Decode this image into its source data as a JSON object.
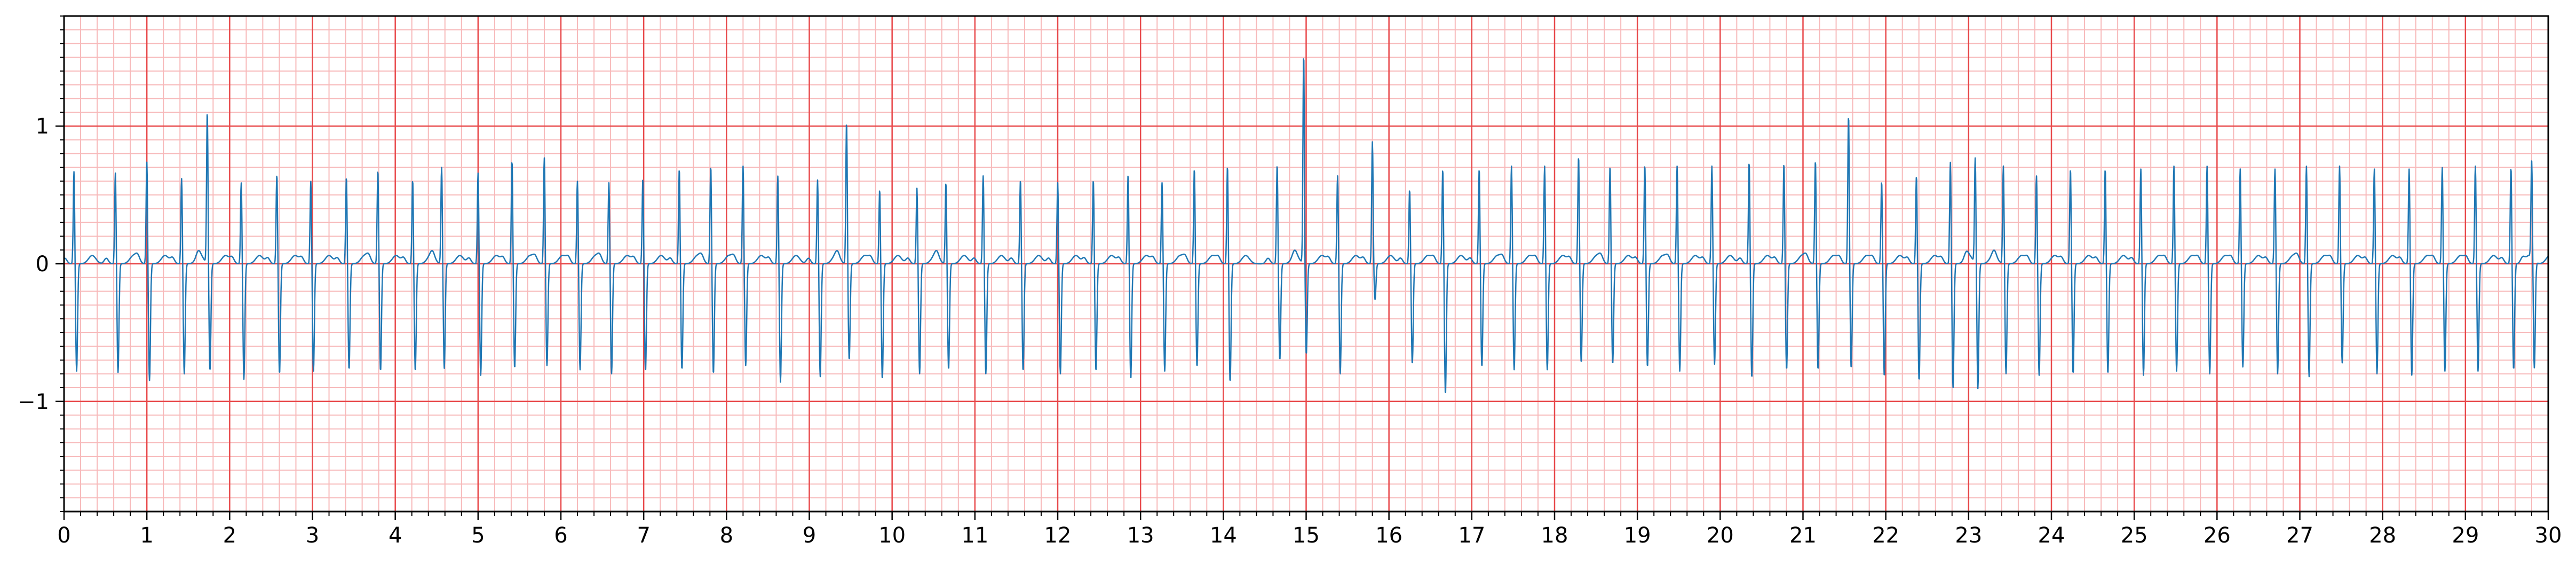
{
  "chart_data": {
    "type": "line",
    "title": "",
    "xlabel": "",
    "ylabel": "",
    "xlim": [
      0,
      30
    ],
    "ylim": [
      -1.8,
      1.8
    ],
    "x_ticks": [
      0,
      1,
      2,
      3,
      4,
      5,
      6,
      7,
      8,
      9,
      10,
      11,
      12,
      13,
      14,
      15,
      16,
      17,
      18,
      19,
      20,
      21,
      22,
      23,
      24,
      25,
      26,
      27,
      28,
      29,
      30
    ],
    "x_tick_labels": [
      "0",
      "1",
      "2",
      "3",
      "4",
      "5",
      "6",
      "7",
      "8",
      "9",
      "10",
      "11",
      "12",
      "13",
      "14",
      "15",
      "16",
      "17",
      "18",
      "19",
      "20",
      "21",
      "22",
      "23",
      "24",
      "25",
      "26",
      "27",
      "28",
      "29",
      "30"
    ],
    "y_ticks": [
      -1,
      0,
      1
    ],
    "y_tick_labels": [
      "−1",
      "0",
      "1"
    ],
    "grid": true,
    "grid_major_color": "#e8494b",
    "grid_minor_color": "#f7b9ba",
    "line_color": "#1f77b4",
    "series": [
      {
        "beats": [
          [
            0.12,
            0.68,
            -0.78
          ],
          [
            0.62,
            0.67,
            -0.79
          ],
          [
            1.0,
            0.75,
            -0.85
          ],
          [
            1.42,
            0.63,
            -0.8
          ],
          [
            1.73,
            1.11,
            -0.78
          ],
          [
            2.14,
            0.6,
            -0.84
          ],
          [
            2.57,
            0.66,
            -0.8
          ],
          [
            2.98,
            0.61,
            -0.78
          ],
          [
            3.41,
            0.64,
            -0.77
          ],
          [
            3.79,
            0.69,
            -0.78
          ],
          [
            4.21,
            0.62,
            -0.78
          ],
          [
            4.56,
            0.71,
            -0.76
          ],
          [
            5.0,
            0.67,
            -0.81
          ],
          [
            5.41,
            0.76,
            -0.76
          ],
          [
            5.8,
            0.78,
            -0.74
          ],
          [
            6.2,
            0.61,
            -0.77
          ],
          [
            6.58,
            0.6,
            -0.8
          ],
          [
            6.99,
            0.63,
            -0.78
          ],
          [
            7.43,
            0.7,
            -0.77
          ],
          [
            7.81,
            0.72,
            -0.8
          ],
          [
            8.2,
            0.72,
            -0.74
          ],
          [
            8.62,
            0.65,
            -0.86
          ],
          [
            9.1,
            0.62,
            -0.82
          ],
          [
            9.45,
            1.04,
            -0.7
          ],
          [
            9.85,
            0.55,
            -0.84
          ],
          [
            10.3,
            0.56,
            -0.8
          ],
          [
            10.65,
            0.6,
            -0.77
          ],
          [
            11.1,
            0.65,
            -0.8
          ],
          [
            11.55,
            0.62,
            -0.78
          ],
          [
            12.0,
            0.6,
            -0.8
          ],
          [
            12.43,
            0.62,
            -0.78
          ],
          [
            12.85,
            0.66,
            -0.84
          ],
          [
            13.26,
            0.6,
            -0.78
          ],
          [
            13.65,
            0.7,
            -0.75
          ],
          [
            14.05,
            0.72,
            -0.86
          ],
          [
            14.65,
            0.73,
            -0.7
          ],
          [
            14.97,
            1.53,
            -0.66
          ],
          [
            15.38,
            0.65,
            -0.8
          ],
          [
            15.8,
            0.89,
            -0.26
          ],
          [
            16.25,
            0.55,
            -0.73
          ],
          [
            16.65,
            0.7,
            -0.95
          ],
          [
            17.09,
            0.7,
            -0.75
          ],
          [
            17.48,
            0.72,
            -0.77
          ],
          [
            17.88,
            0.72,
            -0.77
          ],
          [
            18.29,
            0.79,
            -0.72
          ],
          [
            18.67,
            0.72,
            -0.73
          ],
          [
            19.09,
            0.73,
            -0.75
          ],
          [
            19.48,
            0.72,
            -0.78
          ],
          [
            19.9,
            0.72,
            -0.73
          ],
          [
            20.35,
            0.75,
            -0.83
          ],
          [
            20.77,
            0.74,
            -0.77
          ],
          [
            21.15,
            0.76,
            -0.77
          ],
          [
            21.55,
            1.09,
            -0.76
          ],
          [
            21.95,
            0.61,
            -0.82
          ],
          [
            22.37,
            0.65,
            -0.85
          ],
          [
            22.78,
            0.75,
            -0.9
          ],
          [
            23.08,
            0.77,
            -0.91
          ],
          [
            23.42,
            0.72,
            -0.8
          ],
          [
            23.82,
            0.65,
            -0.81
          ],
          [
            24.23,
            0.7,
            -0.8
          ],
          [
            24.65,
            0.7,
            -0.8
          ],
          [
            25.08,
            0.7,
            -0.81
          ],
          [
            25.48,
            0.72,
            -0.78
          ],
          [
            25.88,
            0.72,
            -0.8
          ],
          [
            26.28,
            0.7,
            -0.75
          ],
          [
            26.7,
            0.7,
            -0.8
          ],
          [
            27.08,
            0.72,
            -0.82
          ],
          [
            27.48,
            0.72,
            -0.72
          ],
          [
            27.9,
            0.7,
            -0.8
          ],
          [
            28.32,
            0.7,
            -0.81
          ],
          [
            28.72,
            0.71,
            -0.78
          ],
          [
            29.12,
            0.72,
            -0.78
          ],
          [
            29.55,
            0.71,
            -0.77
          ],
          [
            29.8,
            0.71,
            -0.78
          ]
        ]
      }
    ]
  }
}
